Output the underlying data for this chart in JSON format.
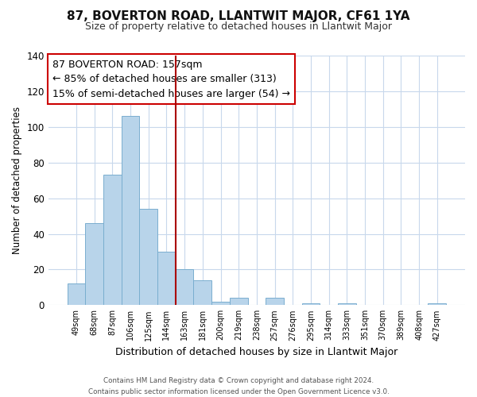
{
  "title": "87, BOVERTON ROAD, LLANTWIT MAJOR, CF61 1YA",
  "subtitle": "Size of property relative to detached houses in Llantwit Major",
  "xlabel": "Distribution of detached houses by size in Llantwit Major",
  "ylabel": "Number of detached properties",
  "bar_color": "#b8d4ea",
  "bar_edge_color": "#7aaecf",
  "categories": [
    "49sqm",
    "68sqm",
    "87sqm",
    "106sqm",
    "125sqm",
    "144sqm",
    "163sqm",
    "181sqm",
    "200sqm",
    "219sqm",
    "238sqm",
    "257sqm",
    "276sqm",
    "295sqm",
    "314sqm",
    "333sqm",
    "351sqm",
    "370sqm",
    "389sqm",
    "408sqm",
    "427sqm"
  ],
  "values": [
    12,
    46,
    73,
    106,
    54,
    30,
    20,
    14,
    2,
    4,
    0,
    4,
    0,
    1,
    0,
    1,
    0,
    0,
    0,
    0,
    1
  ],
  "ylim": [
    0,
    140
  ],
  "yticks": [
    0,
    20,
    40,
    60,
    80,
    100,
    120,
    140
  ],
  "vline_color": "#aa0000",
  "annotation_line0": "87 BOVERTON ROAD: 157sqm",
  "annotation_line1": "← 85% of detached houses are smaller (313)",
  "annotation_line2": "15% of semi-detached houses are larger (54) →",
  "annotation_box_color": "#ffffff",
  "annotation_box_edge": "#cc0000",
  "footer_line1": "Contains HM Land Registry data © Crown copyright and database right 2024.",
  "footer_line2": "Contains public sector information licensed under the Open Government Licence v3.0.",
  "background_color": "#ffffff",
  "grid_color": "#c8d8ec"
}
